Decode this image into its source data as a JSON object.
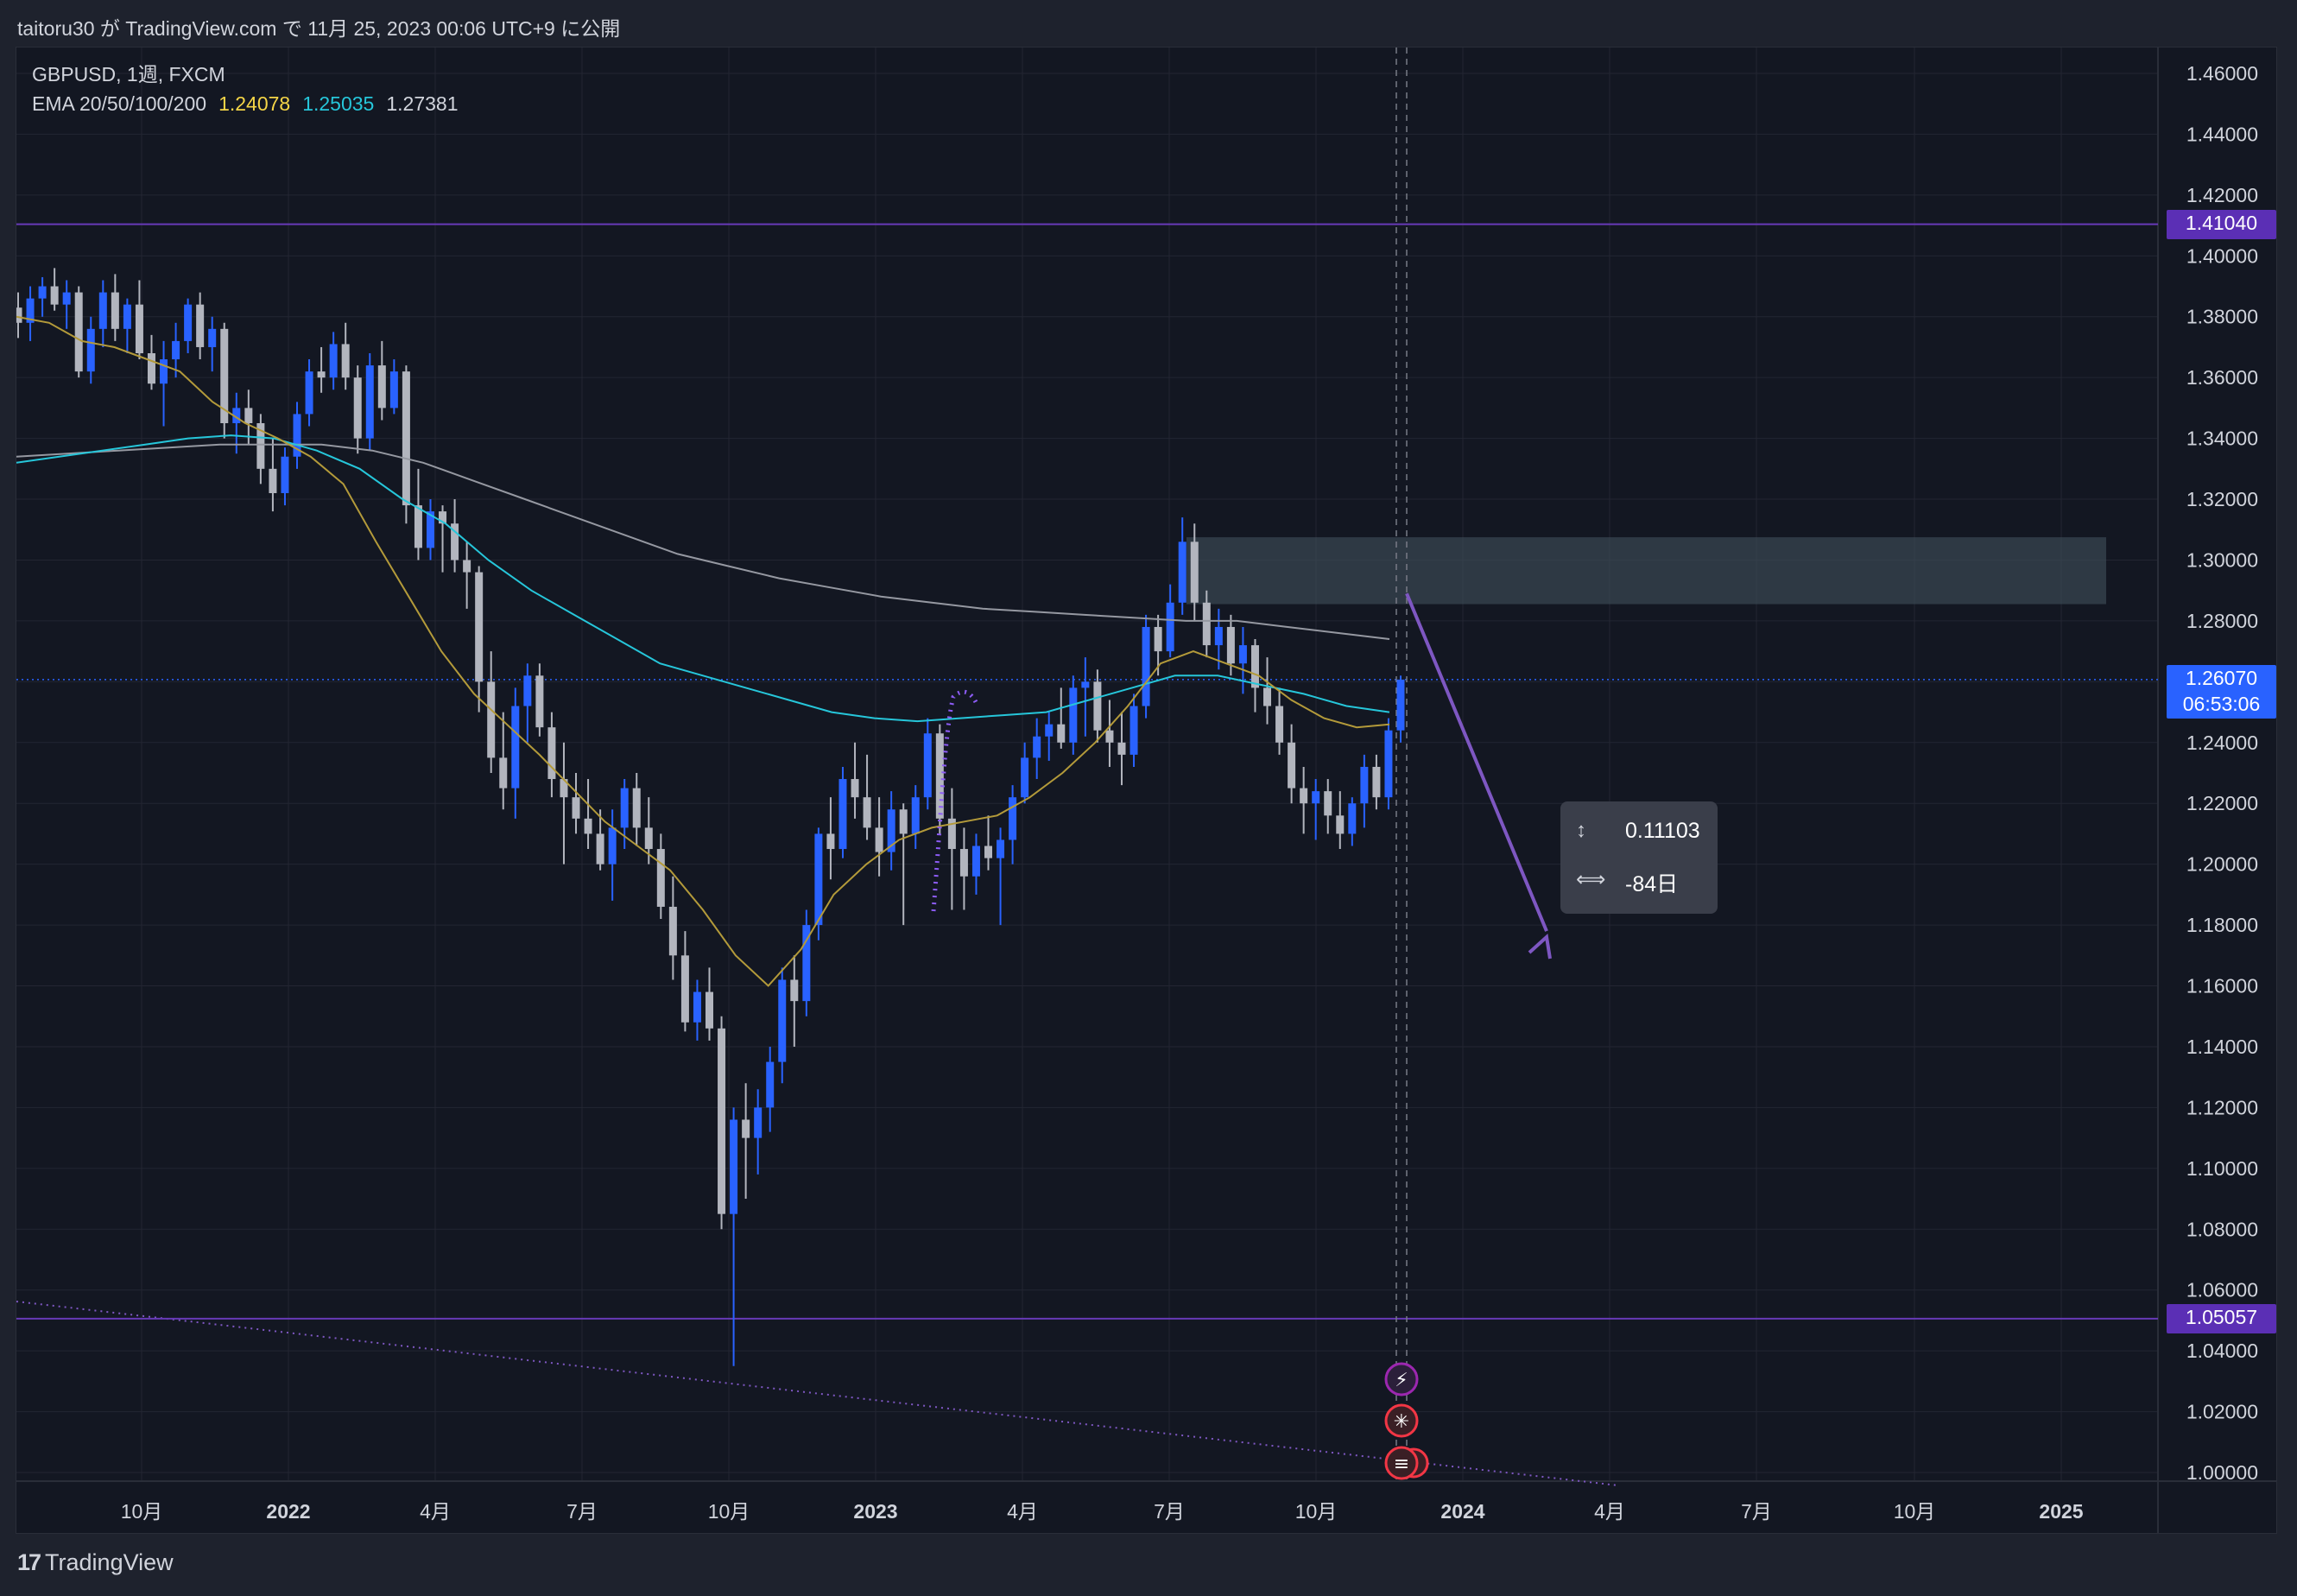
{
  "header": {
    "caption": "taitoru30 が TradingView.com で 11月 25, 2023 00:06 UTC+9 に公開"
  },
  "legend": {
    "symbol_line": "GBPUSD, 1週, FXCM",
    "ema_label": "EMA 20/50/100/200",
    "ema_values": [
      {
        "value": "1.24078",
        "color": "#f5d547"
      },
      {
        "value": "1.25035",
        "color": "#26c6da"
      },
      {
        "value": "1.27381",
        "color": "#d1d4dc"
      }
    ]
  },
  "price_axis": {
    "ticks": [
      "1.46000",
      "1.44000",
      "1.42000",
      "1.40000",
      "1.38000",
      "1.36000",
      "1.34000",
      "1.32000",
      "1.30000",
      "1.28000",
      "1.26000",
      "1.24000",
      "1.22000",
      "1.20000",
      "1.18000",
      "1.16000",
      "1.14000",
      "1.12000",
      "1.10000",
      "1.08000",
      "1.06000",
      "1.04000",
      "1.02000",
      "1.00000"
    ],
    "labels": [
      {
        "text": "1.41040",
        "color": "#5b2fb5"
      },
      {
        "text": "1.05057",
        "color": "#5b2fb5"
      },
      {
        "text": "1.26070",
        "sub": "06:53:06",
        "color": "#2962ff"
      }
    ]
  },
  "time_axis": {
    "ticks": [
      {
        "label": "10月",
        "bold": false
      },
      {
        "label": "2022",
        "bold": true
      },
      {
        "label": "4月",
        "bold": false
      },
      {
        "label": "7月",
        "bold": false
      },
      {
        "label": "10月",
        "bold": false
      },
      {
        "label": "2023",
        "bold": true
      },
      {
        "label": "4月",
        "bold": false
      },
      {
        "label": "7月",
        "bold": false
      },
      {
        "label": "10月",
        "bold": false
      },
      {
        "label": "2024",
        "bold": true
      },
      {
        "label": "4月",
        "bold": false
      },
      {
        "label": "7月",
        "bold": false
      },
      {
        "label": "10月",
        "bold": false
      },
      {
        "label": "2025",
        "bold": true
      }
    ]
  },
  "measure_tooltip": {
    "price_range": "0.11103",
    "bars_range": "-84日"
  },
  "footer": {
    "brand": "TradingView",
    "brand_mark": "17"
  },
  "colors": {
    "up": "#2962ff",
    "down": "#b2b5be",
    "ema20": "#b39a3a",
    "ema50": "#26c6da",
    "ema200": "#9598a1",
    "drawing": "#7e57c2"
  },
  "chart_data": {
    "type": "candlestick",
    "symbol": "GBPUSD",
    "interval": "1週",
    "ylim": [
      0.99,
      1.47
    ],
    "candles": [
      [
        1.383,
        1.388,
        1.373,
        1.378
      ],
      [
        1.378,
        1.39,
        1.372,
        1.386
      ],
      [
        1.386,
        1.393,
        1.38,
        1.39
      ],
      [
        1.39,
        1.396,
        1.382,
        1.384
      ],
      [
        1.384,
        1.392,
        1.376,
        1.388
      ],
      [
        1.388,
        1.39,
        1.36,
        1.362
      ],
      [
        1.362,
        1.38,
        1.358,
        1.376
      ],
      [
        1.376,
        1.392,
        1.37,
        1.388
      ],
      [
        1.388,
        1.394,
        1.372,
        1.376
      ],
      [
        1.376,
        1.386,
        1.368,
        1.384
      ],
      [
        1.384,
        1.392,
        1.366,
        1.368
      ],
      [
        1.368,
        1.374,
        1.356,
        1.358
      ],
      [
        1.358,
        1.372,
        1.344,
        1.366
      ],
      [
        1.366,
        1.378,
        1.36,
        1.372
      ],
      [
        1.372,
        1.386,
        1.368,
        1.384
      ],
      [
        1.384,
        1.388,
        1.366,
        1.37
      ],
      [
        1.37,
        1.38,
        1.362,
        1.376
      ],
      [
        1.376,
        1.378,
        1.34,
        1.345
      ],
      [
        1.345,
        1.355,
        1.335,
        1.35
      ],
      [
        1.35,
        1.356,
        1.338,
        1.345
      ],
      [
        1.345,
        1.348,
        1.325,
        1.33
      ],
      [
        1.33,
        1.34,
        1.316,
        1.322
      ],
      [
        1.322,
        1.337,
        1.318,
        1.334
      ],
      [
        1.334,
        1.352,
        1.33,
        1.348
      ],
      [
        1.348,
        1.366,
        1.344,
        1.362
      ],
      [
        1.362,
        1.37,
        1.355,
        1.36
      ],
      [
        1.36,
        1.375,
        1.356,
        1.371
      ],
      [
        1.371,
        1.378,
        1.356,
        1.36
      ],
      [
        1.36,
        1.364,
        1.335,
        1.34
      ],
      [
        1.34,
        1.368,
        1.336,
        1.364
      ],
      [
        1.364,
        1.372,
        1.346,
        1.35
      ],
      [
        1.35,
        1.366,
        1.348,
        1.362
      ],
      [
        1.362,
        1.364,
        1.312,
        1.318
      ],
      [
        1.318,
        1.33,
        1.3,
        1.304
      ],
      [
        1.304,
        1.32,
        1.3,
        1.316
      ],
      [
        1.316,
        1.318,
        1.296,
        1.312
      ],
      [
        1.312,
        1.32,
        1.296,
        1.3
      ],
      [
        1.3,
        1.306,
        1.284,
        1.296
      ],
      [
        1.296,
        1.298,
        1.25,
        1.26
      ],
      [
        1.26,
        1.27,
        1.23,
        1.235
      ],
      [
        1.235,
        1.25,
        1.218,
        1.225
      ],
      [
        1.225,
        1.258,
        1.215,
        1.252
      ],
      [
        1.252,
        1.266,
        1.24,
        1.262
      ],
      [
        1.262,
        1.266,
        1.242,
        1.245
      ],
      [
        1.245,
        1.25,
        1.222,
        1.228
      ],
      [
        1.228,
        1.24,
        1.2,
        1.222
      ],
      [
        1.222,
        1.23,
        1.21,
        1.215
      ],
      [
        1.215,
        1.228,
        1.205,
        1.21
      ],
      [
        1.21,
        1.218,
        1.198,
        1.2
      ],
      [
        1.2,
        1.218,
        1.188,
        1.212
      ],
      [
        1.212,
        1.228,
        1.205,
        1.225
      ],
      [
        1.225,
        1.23,
        1.206,
        1.212
      ],
      [
        1.212,
        1.222,
        1.2,
        1.205
      ],
      [
        1.205,
        1.21,
        1.182,
        1.186
      ],
      [
        1.186,
        1.196,
        1.162,
        1.17
      ],
      [
        1.17,
        1.178,
        1.145,
        1.148
      ],
      [
        1.148,
        1.162,
        1.142,
        1.158
      ],
      [
        1.158,
        1.166,
        1.142,
        1.146
      ],
      [
        1.146,
        1.15,
        1.08,
        1.085
      ],
      [
        1.085,
        1.12,
        1.035,
        1.116
      ],
      [
        1.116,
        1.128,
        1.09,
        1.11
      ],
      [
        1.11,
        1.126,
        1.098,
        1.12
      ],
      [
        1.12,
        1.14,
        1.112,
        1.135
      ],
      [
        1.135,
        1.166,
        1.128,
        1.162
      ],
      [
        1.162,
        1.17,
        1.14,
        1.155
      ],
      [
        1.155,
        1.185,
        1.15,
        1.18
      ],
      [
        1.18,
        1.212,
        1.175,
        1.21
      ],
      [
        1.21,
        1.222,
        1.195,
        1.205
      ],
      [
        1.205,
        1.232,
        1.202,
        1.228
      ],
      [
        1.228,
        1.24,
        1.215,
        1.222
      ],
      [
        1.222,
        1.236,
        1.208,
        1.212
      ],
      [
        1.212,
        1.222,
        1.196,
        1.204
      ],
      [
        1.204,
        1.224,
        1.198,
        1.218
      ],
      [
        1.218,
        1.22,
        1.18,
        1.21
      ],
      [
        1.21,
        1.226,
        1.205,
        1.222
      ],
      [
        1.222,
        1.248,
        1.218,
        1.243
      ],
      [
        1.243,
        1.246,
        1.21,
        1.215
      ],
      [
        1.215,
        1.225,
        1.185,
        1.205
      ],
      [
        1.205,
        1.212,
        1.185,
        1.196
      ],
      [
        1.196,
        1.21,
        1.19,
        1.206
      ],
      [
        1.206,
        1.216,
        1.198,
        1.202
      ],
      [
        1.202,
        1.212,
        1.18,
        1.208
      ],
      [
        1.208,
        1.226,
        1.2,
        1.222
      ],
      [
        1.222,
        1.24,
        1.22,
        1.235
      ],
      [
        1.235,
        1.248,
        1.228,
        1.242
      ],
      [
        1.242,
        1.25,
        1.234,
        1.246
      ],
      [
        1.246,
        1.258,
        1.238,
        1.24
      ],
      [
        1.24,
        1.262,
        1.236,
        1.258
      ],
      [
        1.258,
        1.268,
        1.242,
        1.26
      ],
      [
        1.26,
        1.264,
        1.24,
        1.244
      ],
      [
        1.244,
        1.254,
        1.232,
        1.24
      ],
      [
        1.24,
        1.25,
        1.226,
        1.236
      ],
      [
        1.236,
        1.256,
        1.232,
        1.252
      ],
      [
        1.252,
        1.282,
        1.248,
        1.278
      ],
      [
        1.278,
        1.282,
        1.262,
        1.27
      ],
      [
        1.27,
        1.292,
        1.268,
        1.286
      ],
      [
        1.286,
        1.314,
        1.282,
        1.306
      ],
      [
        1.306,
        1.312,
        1.28,
        1.286
      ],
      [
        1.286,
        1.29,
        1.268,
        1.272
      ],
      [
        1.272,
        1.284,
        1.264,
        1.278
      ],
      [
        1.278,
        1.282,
        1.262,
        1.266
      ],
      [
        1.266,
        1.278,
        1.256,
        1.272
      ],
      [
        1.272,
        1.274,
        1.25,
        1.258
      ],
      [
        1.258,
        1.268,
        1.246,
        1.252
      ],
      [
        1.252,
        1.258,
        1.236,
        1.24
      ],
      [
        1.24,
        1.246,
        1.22,
        1.225
      ],
      [
        1.225,
        1.232,
        1.21,
        1.22
      ],
      [
        1.22,
        1.228,
        1.208,
        1.224
      ],
      [
        1.224,
        1.228,
        1.21,
        1.216
      ],
      [
        1.216,
        1.224,
        1.205,
        1.21
      ],
      [
        1.21,
        1.222,
        1.206,
        1.22
      ],
      [
        1.22,
        1.236,
        1.212,
        1.232
      ],
      [
        1.232,
        1.236,
        1.218,
        1.222
      ],
      [
        1.222,
        1.248,
        1.218,
        1.244
      ],
      [
        1.244,
        1.262,
        1.24,
        1.2607
      ]
    ],
    "ema20": [
      1.38,
      1.378,
      1.372,
      1.37,
      1.366,
      1.362,
      1.352,
      1.345,
      1.34,
      1.334,
      1.325,
      1.306,
      1.288,
      1.27,
      1.256,
      1.246,
      1.236,
      1.225,
      1.214,
      1.206,
      1.198,
      1.185,
      1.17,
      1.16,
      1.172,
      1.19,
      1.2,
      1.208,
      1.212,
      1.214,
      1.216,
      1.222,
      1.23,
      1.24,
      1.252,
      1.266,
      1.27,
      1.266,
      1.262,
      1.254,
      1.248,
      1.245,
      1.246
    ],
    "ema50": [
      1.332,
      1.334,
      1.336,
      1.338,
      1.34,
      1.341,
      1.34,
      1.336,
      1.33,
      1.32,
      1.312,
      1.3,
      1.29,
      1.282,
      1.274,
      1.266,
      1.262,
      1.258,
      1.254,
      1.25,
      1.248,
      1.247,
      1.248,
      1.249,
      1.25,
      1.254,
      1.258,
      1.262,
      1.262,
      1.259,
      1.256,
      1.252,
      1.25
    ],
    "ema200": [
      1.334,
      1.335,
      1.336,
      1.337,
      1.338,
      1.338,
      1.338,
      1.336,
      1.332,
      1.326,
      1.32,
      1.314,
      1.308,
      1.302,
      1.298,
      1.294,
      1.291,
      1.288,
      1.286,
      1.284,
      1.283,
      1.282,
      1.281,
      1.28,
      1.28,
      1.278,
      1.276,
      1.274
    ],
    "horizontal_levels": [
      1.4104,
      1.05057,
      1.2607
    ],
    "zone": [
      1.2855,
      1.3075
    ],
    "measure": {
      "from": 1.289,
      "to": 1.178,
      "price_range": 0.11103,
      "bars": -84
    }
  }
}
